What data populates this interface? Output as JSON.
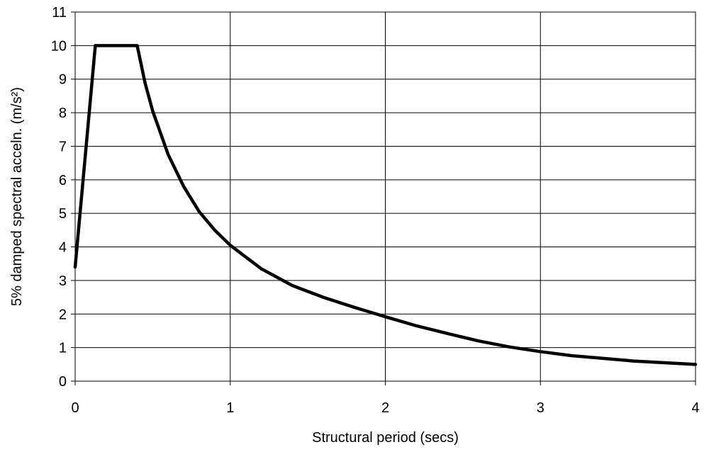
{
  "chart_data": {
    "type": "line",
    "title": "",
    "xlabel": "Structural period (secs)",
    "ylabel": "5% damped spectral acceln. (m/s²)",
    "xlim": [
      0,
      4
    ],
    "ylim": [
      0,
      11
    ],
    "xticks": [
      "0",
      "1",
      "2",
      "3",
      "4"
    ],
    "yticks": [
      "0",
      "1",
      "2",
      "3",
      "4",
      "5",
      "6",
      "7",
      "8",
      "9",
      "10",
      "11"
    ],
    "grid": true,
    "legend": "none",
    "line_color": "#000000",
    "grid_color": "#000000",
    "series": [
      {
        "x": [
          0,
          0.13,
          0.4,
          0.45,
          0.5,
          0.6,
          0.7,
          0.8,
          0.9,
          1.0,
          1.2,
          1.4,
          1.6,
          1.8,
          2.0,
          2.2,
          2.4,
          2.6,
          2.8,
          3.0,
          3.2,
          3.4,
          3.6,
          3.8,
          4.0
        ],
        "y": [
          3.4,
          10.0,
          10.0,
          8.9,
          8.05,
          6.75,
          5.8,
          5.05,
          4.5,
          4.05,
          3.35,
          2.85,
          2.5,
          2.2,
          1.92,
          1.65,
          1.42,
          1.2,
          1.02,
          0.88,
          0.76,
          0.68,
          0.6,
          0.55,
          0.5
        ]
      }
    ]
  }
}
